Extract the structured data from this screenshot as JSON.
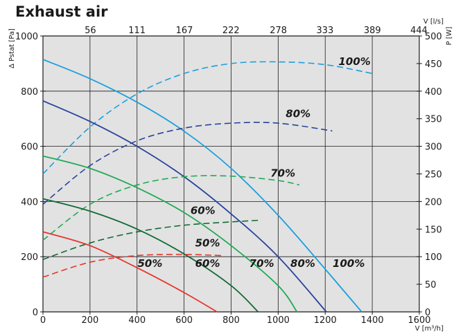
{
  "page": {
    "title": "Exhaust air"
  },
  "colors": {
    "plot_background": "#e2e2e2",
    "grid": "#1a1a1a",
    "series": {
      "100%": "#1a9fde",
      "80%": "#27439c",
      "70%": "#20aa55",
      "60%": "#106a35",
      "50%": "#e5352b"
    }
  },
  "chart_data": {
    "type": "line",
    "title": "Exhaust air",
    "grid": true,
    "xlabel": "V [m³/h]",
    "ylabel": "Δ Pstat [Pa]",
    "top_xlabel": "V [l/s]",
    "right_ylabel": "P [W]",
    "xlim": [
      0,
      1600
    ],
    "ylim": [
      0,
      1000
    ],
    "top_xlim": [
      0,
      444.4
    ],
    "right_ylim": [
      0,
      500
    ],
    "x_ticks": [
      "0",
      "200",
      "400",
      "600",
      "800",
      "1000",
      "1200",
      "1400",
      "1600"
    ],
    "y_ticks": [
      "0",
      "200",
      "400",
      "600",
      "800",
      "1000"
    ],
    "top_x_ticks": [
      "56",
      "111",
      "167",
      "222",
      "278",
      "333",
      "389",
      "444"
    ],
    "right_y_ticks": [
      "0",
      "50",
      "100",
      "150",
      "200",
      "250",
      "300",
      "350",
      "400",
      "450",
      "500"
    ],
    "series": [
      {
        "name": "100%",
        "pressure": [
          [
            0,
            915
          ],
          [
            200,
            845
          ],
          [
            400,
            760
          ],
          [
            600,
            655
          ],
          [
            800,
            520
          ],
          [
            1000,
            350
          ],
          [
            1200,
            155
          ],
          [
            1355,
            0
          ]
        ],
        "power": [
          [
            0,
            250
          ],
          [
            200,
            335
          ],
          [
            400,
            395
          ],
          [
            600,
            432
          ],
          [
            800,
            450
          ],
          [
            1000,
            453
          ],
          [
            1200,
            448
          ],
          [
            1400,
            432
          ]
        ]
      },
      {
        "name": "80%",
        "pressure": [
          [
            0,
            765
          ],
          [
            200,
            690
          ],
          [
            400,
            600
          ],
          [
            600,
            490
          ],
          [
            800,
            355
          ],
          [
            1000,
            200
          ],
          [
            1205,
            0
          ]
        ],
        "power": [
          [
            0,
            195
          ],
          [
            200,
            265
          ],
          [
            400,
            310
          ],
          [
            600,
            333
          ],
          [
            800,
            342
          ],
          [
            1000,
            342
          ],
          [
            1230,
            328
          ]
        ]
      },
      {
        "name": "70%",
        "pressure": [
          [
            0,
            565
          ],
          [
            200,
            520
          ],
          [
            400,
            450
          ],
          [
            600,
            360
          ],
          [
            800,
            240
          ],
          [
            1000,
            95
          ],
          [
            1080,
            0
          ]
        ],
        "power": [
          [
            0,
            130
          ],
          [
            200,
            195
          ],
          [
            400,
            230
          ],
          [
            600,
            245
          ],
          [
            800,
            246
          ],
          [
            1000,
            238
          ],
          [
            1090,
            230
          ]
        ]
      },
      {
        "name": "60%",
        "pressure": [
          [
            0,
            410
          ],
          [
            200,
            365
          ],
          [
            400,
            300
          ],
          [
            600,
            210
          ],
          [
            800,
            95
          ],
          [
            915,
            0
          ]
        ],
        "power": [
          [
            0,
            95
          ],
          [
            200,
            125
          ],
          [
            400,
            145
          ],
          [
            600,
            157
          ],
          [
            800,
            163
          ],
          [
            920,
            166
          ]
        ]
      },
      {
        "name": "50%",
        "pressure": [
          [
            0,
            290
          ],
          [
            200,
            240
          ],
          [
            400,
            160
          ],
          [
            600,
            70
          ],
          [
            740,
            0
          ]
        ],
        "power": [
          [
            0,
            63
          ],
          [
            200,
            90
          ],
          [
            400,
            102
          ],
          [
            600,
            104
          ],
          [
            760,
            102
          ]
        ]
      }
    ],
    "pressure_curve_labels": [
      "50%",
      "60%",
      "70%",
      "80%",
      "100%"
    ],
    "power_curve_labels": [
      "50%",
      "60%",
      "70%",
      "80%",
      "100%"
    ]
  }
}
